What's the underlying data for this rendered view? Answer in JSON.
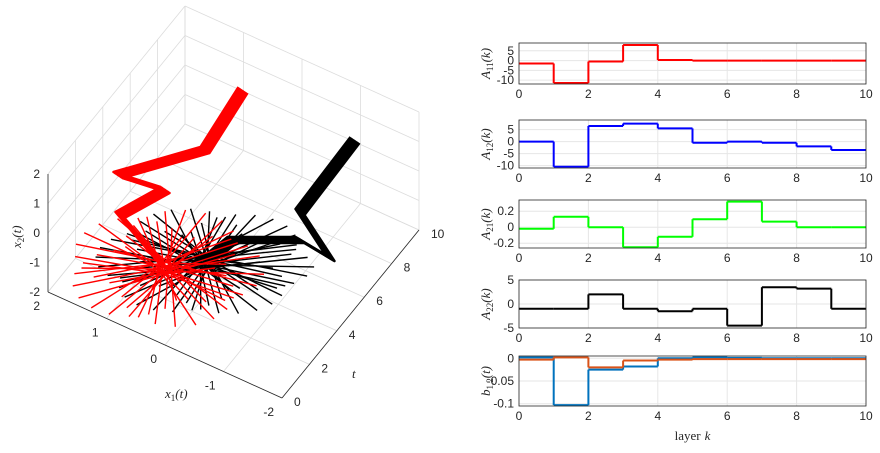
{
  "chart_data": [
    {
      "type": "line3d",
      "xlabel": [
        "x",
        "1",
        "(t)"
      ],
      "ylabel": "t",
      "zlabel": [
        "x",
        "2",
        "(t)"
      ],
      "xlim": [
        -2,
        2
      ],
      "xticks": [
        2,
        1,
        0,
        -1,
        -2
      ],
      "ylim": [
        0,
        10
      ],
      "yticks": [
        0,
        2,
        4,
        6,
        8,
        10
      ],
      "zlim": [
        -2,
        2
      ],
      "zticks": [
        2,
        1,
        0,
        -1,
        -2
      ],
      "grid": true
    },
    {
      "type": "stairs",
      "ylabel": [
        "A",
        "11",
        "(k)"
      ],
      "x": [
        0,
        1,
        2,
        3,
        4,
        5,
        6,
        7,
        8,
        9
      ],
      "xlim": [
        0,
        10
      ],
      "xticks": [
        0,
        2,
        4,
        6,
        8,
        10
      ],
      "ylim": [
        -12,
        9
      ],
      "yticks": [
        5,
        0,
        -5,
        -10
      ],
      "grid": true,
      "series": [
        {
          "color": "#ff0000",
          "values": [
            -1.5,
            -11.5,
            -0.5,
            8,
            0.3,
            0,
            0,
            0,
            0,
            0
          ]
        }
      ]
    },
    {
      "type": "stairs",
      "ylabel": [
        "A",
        "12",
        "(k)"
      ],
      "x": [
        0,
        1,
        2,
        3,
        4,
        5,
        6,
        7,
        8,
        9
      ],
      "xlim": [
        0,
        10
      ],
      "xticks": [
        0,
        2,
        4,
        6,
        8,
        10
      ],
      "ylim": [
        -11,
        9
      ],
      "yticks": [
        5,
        0,
        -5,
        -10
      ],
      "grid": true,
      "series": [
        {
          "color": "#0000ff",
          "values": [
            0,
            -10.5,
            6.5,
            7.5,
            5.5,
            -0.5,
            0,
            -0.5,
            -2,
            -3.5
          ]
        }
      ]
    },
    {
      "type": "stairs",
      "ylabel": [
        "A",
        "21",
        "(k)"
      ],
      "x": [
        0,
        1,
        2,
        3,
        4,
        5,
        6,
        7,
        8,
        9
      ],
      "xlim": [
        0,
        10
      ],
      "xticks": [
        0,
        2,
        4,
        6,
        8,
        10
      ],
      "ylim": [
        -0.26,
        0.34
      ],
      "yticks": [
        0.2,
        0,
        -0.2
      ],
      "grid": true,
      "series": [
        {
          "color": "#00ff00",
          "values": [
            -0.02,
            0.13,
            0,
            -0.25,
            -0.12,
            0.1,
            0.32,
            0.07,
            0,
            0
          ]
        }
      ]
    },
    {
      "type": "stairs",
      "ylabel": [
        "A",
        "22",
        "(k)"
      ],
      "x": [
        0,
        1,
        2,
        3,
        4,
        5,
        6,
        7,
        8,
        9
      ],
      "xlim": [
        0,
        10
      ],
      "xticks": [
        0,
        2,
        4,
        6,
        8,
        10
      ],
      "ylim": [
        -5,
        5
      ],
      "yticks": [
        5,
        0,
        -5
      ],
      "grid": true,
      "series": [
        {
          "color": "#000000",
          "values": [
            -1,
            -1,
            2,
            -1,
            -1.5,
            -1,
            -4.5,
            3.5,
            3.2,
            -1
          ]
        }
      ]
    },
    {
      "type": "stairs",
      "ylabel": [
        "b",
        "1,2",
        "(t)"
      ],
      "xlabel": [
        "layer",
        "k"
      ],
      "x": [
        0,
        1,
        2,
        3,
        4,
        5,
        6,
        7,
        8,
        9
      ],
      "xlim": [
        0,
        10
      ],
      "xticks": [
        0,
        2,
        4,
        6,
        8,
        10
      ],
      "ylim": [
        -0.105,
        0.005
      ],
      "yticks": [
        0,
        -0.05,
        -0.1
      ],
      "grid": true,
      "series": [
        {
          "color": "#0072bd",
          "values": [
            0.002,
            -0.103,
            -0.025,
            -0.018,
            0,
            0.002,
            0.001,
            0,
            0,
            0
          ]
        },
        {
          "color": "#d95319",
          "values": [
            -0.003,
            0.002,
            -0.02,
            -0.005,
            -0.003,
            -0.002,
            -0.002,
            -0.002,
            -0.002,
            -0.002
          ]
        }
      ]
    }
  ]
}
